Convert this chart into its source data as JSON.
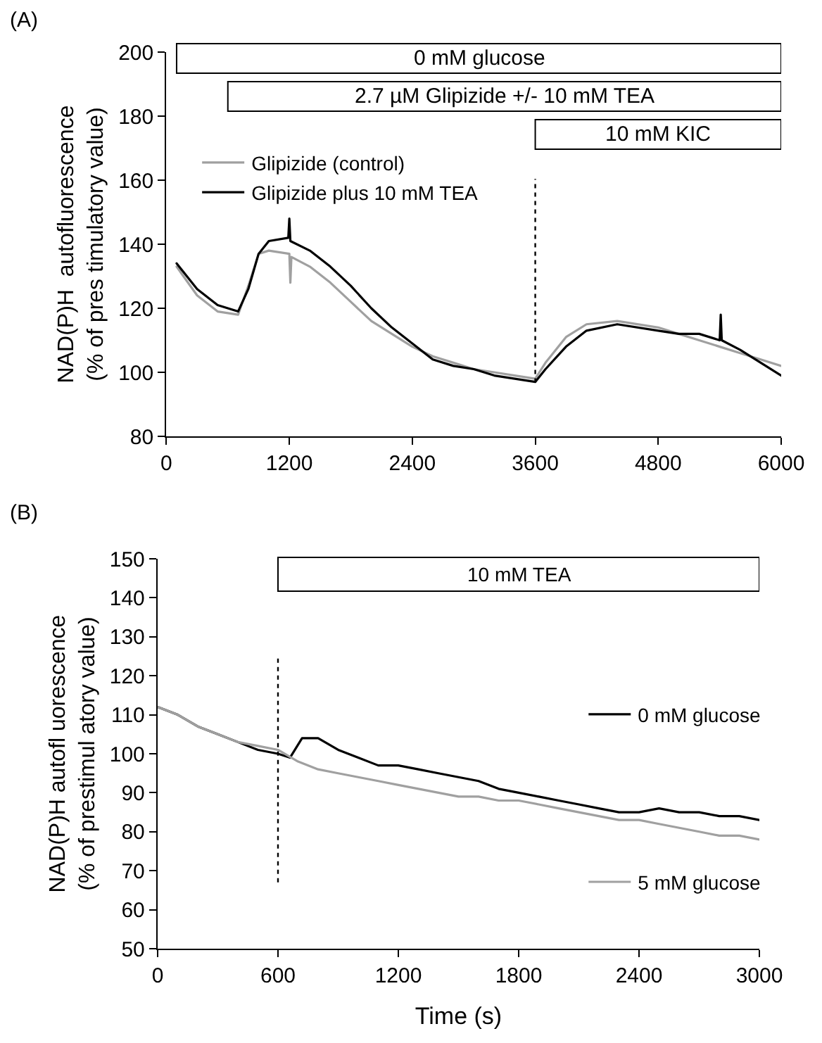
{
  "chart_data": [
    {
      "type": "line",
      "title": "(A)",
      "ylabel": "NAD(P)H  autofluorescence\n(% of pres timulatory value)",
      "xlim": [
        0,
        6000
      ],
      "ylim": [
        80,
        200
      ],
      "xticks": [
        0,
        1200,
        2400,
        3600,
        4800,
        6000
      ],
      "yticks": [
        80,
        100,
        120,
        140,
        160,
        180,
        200
      ],
      "legend": "top left",
      "series": [
        {
          "name": "Glipizide (control)",
          "color": "#a0a0a0",
          "x": [
            100,
            300,
            500,
            700,
            800,
            900,
            1000,
            1200,
            1210,
            1220,
            1400,
            1600,
            1800,
            2000,
            2200,
            2400,
            2600,
            2800,
            3000,
            3200,
            3400,
            3600,
            3700,
            3900,
            4100,
            4400,
            4800,
            5000,
            5200,
            5400,
            5600,
            5800,
            6000
          ],
          "values": [
            133,
            124,
            119,
            118,
            127,
            137,
            138,
            137,
            128,
            136,
            133,
            128,
            122,
            116,
            112,
            108,
            105,
            103,
            101,
            100,
            99,
            98,
            103,
            111,
            115,
            116,
            114,
            112,
            110,
            108,
            106,
            104,
            102
          ]
        },
        {
          "name": "Glipizide plus 10 mM TEA",
          "color": "#000000",
          "x": [
            100,
            300,
            500,
            700,
            800,
            900,
            1000,
            1190,
            1200,
            1210,
            1400,
            1600,
            1800,
            2000,
            2200,
            2400,
            2600,
            2800,
            3000,
            3200,
            3400,
            3600,
            3700,
            3900,
            4100,
            4400,
            4800,
            5000,
            5200,
            5400,
            5410,
            5420,
            5600,
            5800,
            6000
          ],
          "values": [
            134,
            126,
            121,
            119,
            126,
            137,
            141,
            142,
            148,
            141,
            138,
            133,
            127,
            120,
            114,
            109,
            104,
            102,
            101,
            99,
            98,
            97,
            101,
            108,
            113,
            115,
            113,
            112,
            112,
            110,
            118,
            110,
            107,
            103,
            99
          ]
        }
      ],
      "bands": [
        {
          "axis": "x",
          "from": 100,
          "to": 6000,
          "label": "0 mM glucose",
          "color": "#ffffff"
        },
        {
          "axis": "x",
          "from": 600,
          "to": 6000,
          "label": "2.7 µM Glipizide +/- 10 mM TEA",
          "color": "#ffffff"
        },
        {
          "axis": "x",
          "from": 3600,
          "to": 6000,
          "label": "10 mM KIC",
          "color": "#ffffff"
        }
      ],
      "ref_lines": [
        {
          "axis": "x",
          "value": 3600,
          "line_style": "dotted",
          "color": "#000000"
        }
      ]
    },
    {
      "type": "line",
      "title": "(B)",
      "xlabel": "Time (s)",
      "ylabel": "NAD(P)H autofl uorescence\n(% of prestimul atory value)",
      "xlim": [
        0,
        3000
      ],
      "ylim": [
        50,
        150
      ],
      "xticks": [
        0,
        600,
        1200,
        1800,
        2400,
        3000
      ],
      "yticks": [
        50,
        60,
        70,
        80,
        90,
        100,
        110,
        120,
        130,
        140,
        150
      ],
      "legend": "right",
      "series": [
        {
          "name": "0 mM glucose",
          "color": "#000000",
          "x": [
            0,
            100,
            200,
            300,
            400,
            500,
            600,
            660,
            720,
            800,
            900,
            1000,
            1100,
            1200,
            1300,
            1400,
            1500,
            1600,
            1700,
            1800,
            1900,
            2000,
            2100,
            2200,
            2300,
            2400,
            2500,
            2600,
            2700,
            2800,
            2900,
            3000
          ],
          "values": [
            112,
            110,
            107,
            105,
            103,
            101,
            100,
            99,
            104,
            104,
            101,
            99,
            97,
            97,
            96,
            95,
            94,
            93,
            91,
            90,
            89,
            88,
            87,
            86,
            85,
            85,
            86,
            85,
            85,
            84,
            84,
            83
          ]
        },
        {
          "name": "5 mM glucose",
          "color": "#a0a0a0",
          "x": [
            0,
            100,
            200,
            300,
            400,
            500,
            600,
            700,
            800,
            900,
            1000,
            1100,
            1200,
            1300,
            1400,
            1500,
            1600,
            1700,
            1800,
            1900,
            2000,
            2100,
            2200,
            2300,
            2400,
            2500,
            2600,
            2700,
            2800,
            2900,
            3000
          ],
          "values": [
            112,
            110,
            107,
            105,
            103,
            102,
            101,
            98,
            96,
            95,
            94,
            93,
            92,
            91,
            90,
            89,
            89,
            88,
            88,
            87,
            86,
            85,
            84,
            83,
            83,
            82,
            81,
            80,
            79,
            79,
            78
          ]
        }
      ],
      "bands": [
        {
          "axis": "x",
          "from": 600,
          "to": 3000,
          "label": "10 mM TEA",
          "color": "#ffffff"
        }
      ],
      "ref_lines": [
        {
          "axis": "x",
          "value": 600,
          "line_style": "dotted",
          "color": "#000000"
        }
      ]
    }
  ]
}
